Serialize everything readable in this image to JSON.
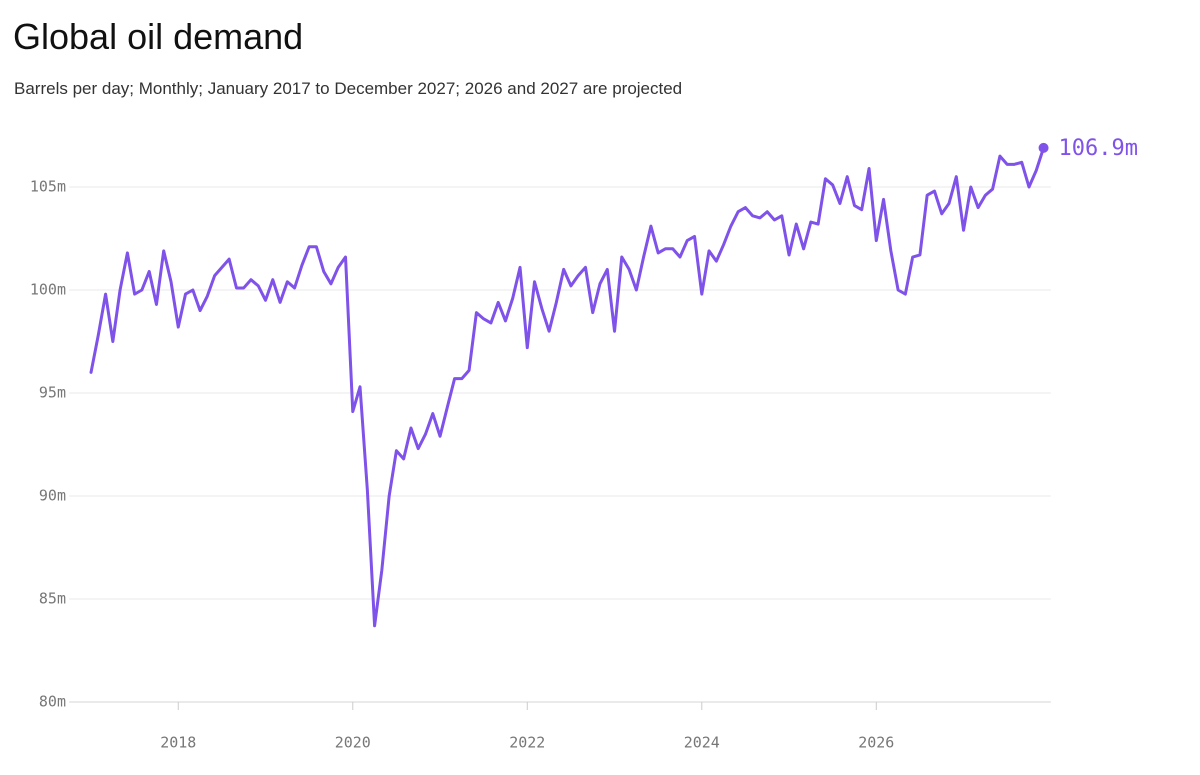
{
  "chart_data": {
    "type": "line",
    "title": "Global oil demand",
    "subtitle": "Barrels per day; Monthly; January 2017 to December 2027; 2026 and 2027 are projected",
    "x": [
      2017,
      2017.083,
      2017.167,
      2017.25,
      2017.333,
      2017.417,
      2017.5,
      2017.583,
      2017.667,
      2017.75,
      2017.833,
      2017.917,
      2018,
      2018.083,
      2018.167,
      2018.25,
      2018.333,
      2018.417,
      2018.5,
      2018.583,
      2018.667,
      2018.75,
      2018.833,
      2018.917,
      2019,
      2019.083,
      2019.167,
      2019.25,
      2019.333,
      2019.417,
      2019.5,
      2019.583,
      2019.667,
      2019.75,
      2019.833,
      2019.917,
      2020,
      2020.083,
      2020.167,
      2020.25,
      2020.333,
      2020.417,
      2020.5,
      2020.583,
      2020.667,
      2020.75,
      2020.833,
      2020.917,
      2021,
      2021.083,
      2021.167,
      2021.25,
      2021.333,
      2021.417,
      2021.5,
      2021.583,
      2021.667,
      2021.75,
      2021.833,
      2021.917,
      2022,
      2022.083,
      2022.167,
      2022.25,
      2022.333,
      2022.417,
      2022.5,
      2022.583,
      2022.667,
      2022.75,
      2022.833,
      2022.917,
      2023,
      2023.083,
      2023.167,
      2023.25,
      2023.333,
      2023.417,
      2023.5,
      2023.583,
      2023.667,
      2023.75,
      2023.833,
      2023.917,
      2024,
      2024.083,
      2024.167,
      2024.25,
      2024.333,
      2024.417,
      2024.5,
      2024.583,
      2024.667,
      2024.75,
      2024.833,
      2024.917,
      2025,
      2025.083,
      2025.167,
      2025.25,
      2025.333,
      2025.417,
      2025.5,
      2025.583,
      2025.667,
      2025.75,
      2025.833,
      2025.917,
      2026,
      2026.083,
      2026.167,
      2026.25,
      2026.333,
      2026.417,
      2026.5,
      2026.583,
      2026.667,
      2026.75,
      2026.833,
      2026.917,
      2027,
      2027.083,
      2027.167,
      2027.25,
      2027.333,
      2027.417,
      2027.5,
      2027.583,
      2027.667,
      2027.75,
      2027.833,
      2027.917
    ],
    "series": [
      {
        "name": "Global oil demand",
        "color": "#7f52ea",
        "values": [
          96.0,
          97.8,
          99.8,
          97.5,
          100.0,
          101.8,
          99.8,
          100.0,
          100.9,
          99.3,
          101.9,
          100.4,
          98.2,
          99.8,
          100.0,
          99.0,
          99.7,
          100.7,
          101.1,
          101.5,
          100.1,
          100.1,
          100.5,
          100.2,
          99.5,
          100.5,
          99.4,
          100.4,
          100.1,
          101.2,
          102.1,
          102.1,
          100.9,
          100.3,
          101.1,
          101.6,
          94.1,
          95.3,
          90.3,
          83.7,
          86.4,
          90.0,
          92.2,
          91.8,
          93.3,
          92.3,
          93.0,
          94.0,
          92.9,
          94.3,
          95.7,
          95.7,
          96.1,
          98.9,
          98.6,
          98.4,
          99.4,
          98.5,
          99.6,
          101.1,
          97.2,
          100.4,
          99.1,
          98.0,
          99.4,
          101.0,
          100.2,
          100.7,
          101.1,
          98.9,
          100.3,
          101.0,
          98.0,
          101.6,
          101.0,
          100.0,
          101.6,
          103.1,
          101.8,
          102.0,
          102.0,
          101.6,
          102.4,
          102.6,
          99.8,
          101.9,
          101.4,
          102.2,
          103.1,
          103.8,
          104.0,
          103.6,
          103.5,
          103.8,
          103.4,
          103.6,
          101.7,
          103.2,
          102.0,
          103.3,
          103.2,
          105.4,
          105.1,
          104.2,
          105.5,
          104.1,
          103.9,
          105.9,
          102.4,
          104.4,
          101.9,
          100.0,
          99.8,
          101.6,
          101.7,
          104.6,
          104.8,
          103.7,
          104.2,
          105.5,
          102.9,
          105.0,
          104.0,
          104.6,
          104.9,
          106.5,
          106.1,
          106.1,
          106.2,
          105.0,
          105.8,
          106.9
        ],
        "end_label": "106.9m"
      }
    ],
    "xlim": [
      2016.75,
      2028
    ],
    "xticks": [
      2018,
      2020,
      2022,
      2024,
      2026
    ],
    "ylim": [
      80,
      107
    ],
    "yticks": [
      {
        "value": 80,
        "label": "80m"
      },
      {
        "value": 85,
        "label": "85m"
      },
      {
        "value": 90,
        "label": "90m"
      },
      {
        "value": 95,
        "label": "95m"
      },
      {
        "value": 100,
        "label": "100m"
      },
      {
        "value": 105,
        "label": "105m"
      }
    ],
    "grid": true
  }
}
